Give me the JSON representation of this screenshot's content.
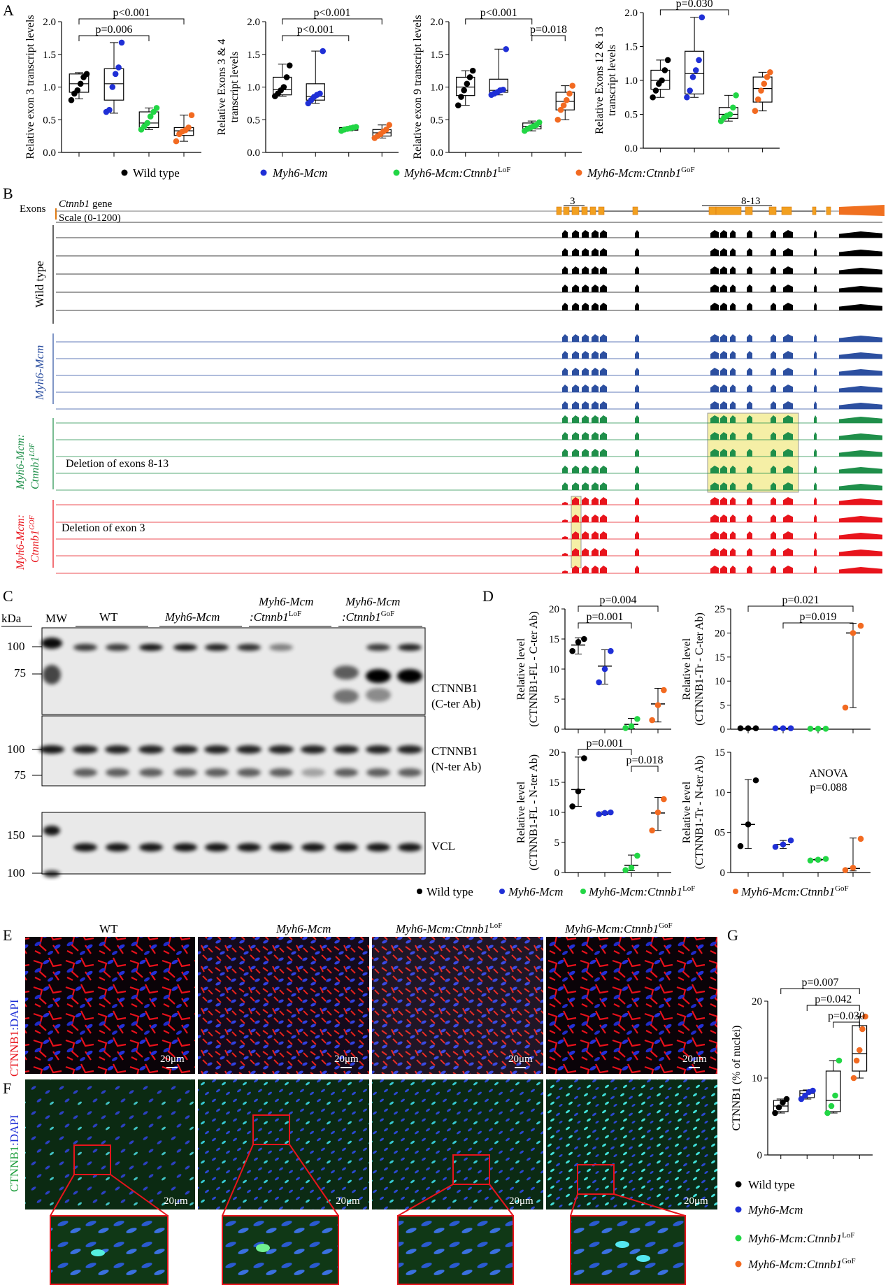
{
  "colors": {
    "wt": "#000000",
    "mcm": "#1f2fd6",
    "lof": "#22d645",
    "gof": "#f26a21",
    "track_wt": "#000000",
    "track_mcm": "#2c4fa0",
    "track_lof": "#1f8f4a",
    "track_gof": "#e8141c",
    "highlight": "#f5efa6",
    "blot_bg": "#e6e6e6"
  },
  "panels": {
    "A": "A",
    "B": "B",
    "C": "C",
    "D": "D",
    "E": "E",
    "F": "F",
    "G": "G"
  },
  "legend": {
    "wt": "Wild type",
    "mcm": "Myh6-Mcm",
    "lof_main": "Myh6-Mcm:Ctnnb1",
    "lof_sup": "LoF",
    "gof_main": "Myh6-Mcm:Ctnnb1",
    "gof_sup": "GoF"
  },
  "chart_data": [
    {
      "id": "A1",
      "type": "box",
      "ylabel": "Relative exon 3 transcript levels",
      "ylim": [
        0,
        2.0
      ],
      "yticks": [
        "0.0",
        "0.5",
        "1.0",
        "1.5",
        "2.0"
      ],
      "groups": [
        {
          "name": "Wild type",
          "points": [
            0.8,
            0.9,
            0.95,
            1.05,
            1.15,
            1.2
          ],
          "box": [
            0.82,
            0.92,
            1.05,
            1.2,
            1.22
          ]
        },
        {
          "name": "Myh6-Mcm",
          "points": [
            0.62,
            0.65,
            1.0,
            1.2,
            1.3,
            1.68
          ],
          "box": [
            0.6,
            0.8,
            1.05,
            1.28,
            1.68
          ]
        },
        {
          "name": "LoF",
          "points": [
            0.35,
            0.4,
            0.45,
            0.55,
            0.62,
            0.68
          ],
          "box": [
            0.35,
            0.38,
            0.45,
            0.62,
            0.68
          ]
        },
        {
          "name": "GoF",
          "points": [
            0.17,
            0.28,
            0.32,
            0.34,
            0.38,
            0.57
          ],
          "box": [
            0.17,
            0.26,
            0.33,
            0.38,
            0.57
          ]
        }
      ],
      "brackets": [
        {
          "from": 0,
          "to": 3,
          "label": "p<0.001"
        },
        {
          "from": 0,
          "to": 2,
          "label": "p=0.006"
        }
      ]
    },
    {
      "id": "A2",
      "type": "box",
      "ylabel": "Relative Exons 3 & 4 transcript levels",
      "ylim": [
        0,
        2.0
      ],
      "yticks": [
        "0.0",
        "0.5",
        "1.0",
        "1.5",
        "2.0"
      ],
      "groups": [
        {
          "name": "Wild type",
          "points": [
            0.86,
            0.9,
            0.95,
            1.0,
            1.15,
            1.33
          ],
          "box": [
            0.86,
            0.88,
            0.96,
            1.15,
            1.35
          ]
        },
        {
          "name": "Myh6-Mcm",
          "points": [
            0.75,
            0.8,
            0.85,
            0.88,
            0.9,
            1.55
          ],
          "box": [
            0.75,
            0.8,
            0.86,
            1.05,
            1.55
          ]
        },
        {
          "name": "LoF",
          "points": [
            0.33,
            0.35,
            0.36,
            0.37,
            0.38,
            0.39
          ],
          "box": [
            0.33,
            0.34,
            0.36,
            0.38,
            0.39
          ]
        },
        {
          "name": "GoF",
          "points": [
            0.22,
            0.25,
            0.28,
            0.32,
            0.35,
            0.42
          ],
          "box": [
            0.22,
            0.25,
            0.3,
            0.35,
            0.42
          ]
        }
      ],
      "brackets": [
        {
          "from": 0,
          "to": 3,
          "label": "p<0.001"
        },
        {
          "from": 0,
          "to": 2,
          "label": "p<0.001"
        }
      ]
    },
    {
      "id": "A3",
      "type": "box",
      "ylabel": "Relative exon 9 transcript levels",
      "ylim": [
        0,
        2.0
      ],
      "yticks": [
        "0.0",
        "0.5",
        "1.0",
        "1.5",
        "2.0"
      ],
      "groups": [
        {
          "name": "Wild type",
          "points": [
            0.72,
            0.85,
            0.95,
            1.05,
            1.15,
            1.25
          ],
          "box": [
            0.72,
            0.87,
            1.0,
            1.15,
            1.25
          ]
        },
        {
          "name": "Myh6-Mcm",
          "points": [
            0.88,
            0.9,
            0.92,
            0.95,
            0.96,
            1.58
          ],
          "box": [
            0.88,
            0.92,
            0.95,
            1.12,
            1.58
          ]
        },
        {
          "name": "LoF",
          "points": [
            0.33,
            0.36,
            0.38,
            0.4,
            0.42,
            0.46
          ],
          "box": [
            0.33,
            0.36,
            0.4,
            0.45,
            0.48
          ]
        },
        {
          "name": "GoF",
          "points": [
            0.5,
            0.65,
            0.72,
            0.8,
            0.9,
            1.02
          ],
          "box": [
            0.5,
            0.65,
            0.78,
            0.92,
            1.02
          ]
        }
      ],
      "brackets": [
        {
          "from": 0,
          "to": 2,
          "label": "p<0.001"
        },
        {
          "from": 2,
          "to": 3,
          "label": "p=0.018"
        }
      ]
    },
    {
      "id": "A4",
      "type": "box",
      "ylabel": "Relative Exons 12 & 13 transcript levels",
      "ylim": [
        0,
        2.0
      ],
      "yticks": [
        "0.0",
        "0.5",
        "1.0",
        "1.5",
        "2.0"
      ],
      "groups": [
        {
          "name": "Wild type",
          "points": [
            0.75,
            0.85,
            0.95,
            1.0,
            1.15,
            1.3
          ],
          "box": [
            0.75,
            0.87,
            1.0,
            1.15,
            1.3
          ]
        },
        {
          "name": "Myh6-Mcm",
          "points": [
            0.75,
            0.85,
            1.05,
            1.15,
            1.3,
            1.93
          ],
          "box": [
            0.75,
            0.8,
            1.1,
            1.43,
            1.93
          ]
        },
        {
          "name": "LoF",
          "points": [
            0.4,
            0.45,
            0.48,
            0.5,
            0.6,
            0.78
          ],
          "box": [
            0.4,
            0.44,
            0.5,
            0.6,
            0.78
          ]
        },
        {
          "name": "GoF",
          "points": [
            0.55,
            0.72,
            0.85,
            0.95,
            1.05,
            1.12
          ],
          "box": [
            0.55,
            0.68,
            0.88,
            1.05,
            1.12
          ]
        }
      ],
      "brackets": [
        {
          "from": 0,
          "to": 2,
          "label": "p=0.030"
        }
      ]
    },
    {
      "id": "D1",
      "type": "dot",
      "ylabel": "Relative level (CTNNB1-FL - C-ter Ab)",
      "ylim": [
        0,
        20
      ],
      "yticks": [
        "0",
        "5",
        "10",
        "15",
        "20"
      ],
      "groups": [
        {
          "name": "Wild type",
          "points": [
            13,
            14.5,
            15
          ],
          "mean": 14,
          "err": [
            12.5,
            15.2
          ]
        },
        {
          "name": "Myh6-Mcm",
          "points": [
            7.8,
            10,
            13
          ],
          "mean": 10.5,
          "err": [
            7.5,
            13.2
          ]
        },
        {
          "name": "LoF",
          "points": [
            0.2,
            0.5,
            1.7
          ],
          "mean": 0.8,
          "err": [
            0.1,
            1.8
          ]
        },
        {
          "name": "GoF",
          "points": [
            1.5,
            4,
            6.5
          ],
          "mean": 4.2,
          "err": [
            1.2,
            6.8
          ]
        }
      ],
      "brackets": [
        {
          "from": 0,
          "to": 3,
          "label": "p=0.004"
        },
        {
          "from": 0,
          "to": 2,
          "label": "p=0.001"
        }
      ]
    },
    {
      "id": "D2",
      "type": "dot",
      "ylabel": "Relative level (CTNNB1-Tr - C-ter Ab)",
      "ylim": [
        0,
        25
      ],
      "yticks": [
        "0",
        "5",
        "10",
        "15",
        "20",
        "25"
      ],
      "groups": [
        {
          "name": "Wild type",
          "points": [
            0.2,
            0.2,
            0.2
          ],
          "mean": 0.2,
          "err": [
            0.2,
            0.2
          ]
        },
        {
          "name": "Myh6-Mcm",
          "points": [
            0.2,
            0.2,
            0.2
          ],
          "mean": 0.2,
          "err": [
            0.2,
            0.2
          ]
        },
        {
          "name": "LoF",
          "points": [
            0.1,
            0.1,
            0.1
          ],
          "mean": 0.1,
          "err": [
            0.1,
            0.1
          ]
        },
        {
          "name": "GoF",
          "points": [
            4.5,
            20,
            21.5
          ],
          "mean": 20,
          "err": [
            4.5,
            22
          ]
        }
      ],
      "brackets": [
        {
          "from": 0,
          "to": 3,
          "label": "p=0.021"
        },
        {
          "from": 1,
          "to": 3,
          "label": "p=0.019"
        }
      ]
    },
    {
      "id": "D3",
      "type": "dot",
      "ylabel": "Relative level (CTNNB1-FL - N-ter Ab)",
      "ylim": [
        0,
        20
      ],
      "yticks": [
        "0",
        "5",
        "10",
        "15",
        "20"
      ],
      "groups": [
        {
          "name": "Wild type",
          "points": [
            11,
            13.5,
            19
          ],
          "mean": 13.8,
          "err": [
            11,
            19.2
          ]
        },
        {
          "name": "Myh6-Mcm",
          "points": [
            9.7,
            9.9,
            10
          ],
          "mean": 9.8,
          "err": [
            9.6,
            10.1
          ]
        },
        {
          "name": "LoF",
          "points": [
            0.4,
            0.8,
            2.8
          ],
          "mean": 1.2,
          "err": [
            0.3,
            2.9
          ]
        },
        {
          "name": "GoF",
          "points": [
            7,
            10,
            12.2
          ],
          "mean": 9.9,
          "err": [
            7,
            12.5
          ]
        }
      ],
      "brackets": [
        {
          "from": 0,
          "to": 2,
          "label": "p=0.001"
        },
        {
          "from": 2,
          "to": 3,
          "label": "p=0.018"
        }
      ]
    },
    {
      "id": "D4",
      "type": "dot",
      "ylabel": "Relative level (CTNNB1-Tr - N-ter Ab)",
      "ylim": [
        0,
        15
      ],
      "yticks": [
        "0",
        "05",
        "10",
        "15"
      ],
      "annotation": [
        "ANOVA",
        "p=0.088"
      ],
      "groups": [
        {
          "name": "Wild type",
          "points": [
            3.3,
            6,
            11.5
          ],
          "mean": 6,
          "err": [
            3,
            11.6
          ]
        },
        {
          "name": "Myh6-Mcm",
          "points": [
            3.2,
            3.5,
            4
          ],
          "mean": 3.5,
          "err": [
            3,
            4
          ]
        },
        {
          "name": "LoF",
          "points": [
            1.5,
            1.6,
            1.7
          ],
          "mean": 1.6,
          "err": [
            1.5,
            1.7
          ]
        },
        {
          "name": "GoF",
          "points": [
            0.3,
            0.6,
            4.2
          ],
          "mean": 0.5,
          "err": [
            0.2,
            4.3
          ]
        }
      ],
      "brackets": []
    },
    {
      "id": "G",
      "type": "box",
      "ylabel": "CTNNB1 (% of nuclei)",
      "ylim": [
        0,
        22
      ],
      "yticks": [
        "0",
        "10",
        "20"
      ],
      "groups": [
        {
          "name": "Wild type",
          "points": [
            6,
            6.8,
            7.5,
            8
          ],
          "box": [
            6,
            6.2,
            7,
            7.8,
            8
          ]
        },
        {
          "name": "Myh6-Mcm",
          "points": [
            8,
            8.5,
            9,
            9.2
          ],
          "box": [
            8,
            8.2,
            8.8,
            9.2,
            9.3
          ]
        },
        {
          "name": "LoF",
          "points": [
            6,
            7,
            8.5,
            13.5
          ],
          "box": [
            6,
            6.2,
            7.8,
            12,
            13.5
          ]
        },
        {
          "name": "GoF",
          "points": [
            11,
            13.5,
            15,
            18,
            19.8
          ],
          "box": [
            11,
            12,
            14.5,
            18.5,
            19.8
          ]
        }
      ],
      "brackets": [
        {
          "from": 0,
          "to": 3,
          "label": "p=0.007"
        },
        {
          "from": 1,
          "to": 3,
          "label": "p=0.042"
        },
        {
          "from": 2,
          "to": 3,
          "label": "p=0.030"
        }
      ]
    }
  ],
  "panelB": {
    "exons_label": "Exons",
    "gene_label_italic": "Ctnnb1",
    "gene_label": " gene",
    "scale_label": "Scale  (0-1200)",
    "exon3_label": "3",
    "exon813_label": "8-13",
    "groups": [
      {
        "label": "Wild type"
      },
      {
        "label": "Myh6-Mcm"
      },
      {
        "label": "Myh6-Mcm:",
        "label2": "Ctnnb1",
        "label2_sup": "LOF"
      },
      {
        "label": "Myh6-Mcm:",
        "label2": "Ctnnb1",
        "label2_sup": "GOF"
      }
    ],
    "lof_note": "Deletion of exons 8-13",
    "gof_note": "Deletion of exon 3"
  },
  "panelC": {
    "kda": "kDa",
    "mw": "MW",
    "wt": "WT",
    "mcm": "Myh6-Mcm",
    "lof1": "Myh6-Mcm",
    ":lof2": ":Ctnnb1",
    "lof2": ":Ctnnb1",
    "lof_sup": "LoF",
    "gof1": "Myh6-Mcm",
    "gof2": ":Ctnnb1",
    "gof_sup": "GoF",
    "blot1_label1": "CTNNB1",
    "blot1_label2": "(C-ter Ab)",
    "blot2_label1": "CTNNB1",
    "blot2_label2": "(N-ter Ab)",
    "blot3_label": "VCL",
    "mw1": [
      "100",
      "75"
    ],
    "mw2": [
      "100",
      "75"
    ],
    "mw3": [
      "150",
      "100"
    ]
  },
  "panelE": {
    "side1": "CTNNB1",
    "side2": ":DAPI",
    "titles": [
      "WT",
      "Myh6-Mcm",
      "Myh6-Mcm:Ctnnb1",
      "Myh6-Mcm:Ctnnb1"
    ],
    "title_sups": [
      "",
      "",
      "LoF",
      "GoF"
    ],
    "scale": "20μm"
  },
  "panelF": {
    "side1": "CTNNB1",
    "side2": ":DAPI",
    "scale": "20μm"
  }
}
